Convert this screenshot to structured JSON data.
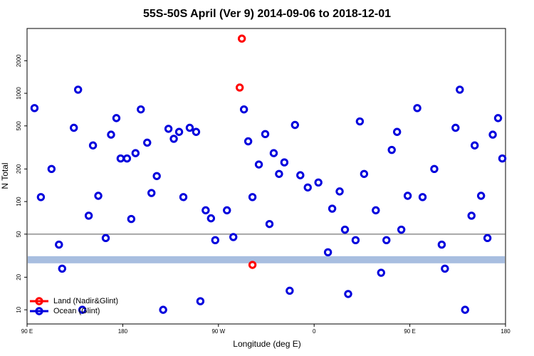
{
  "chart_data": {
    "type": "scatter",
    "title": "55S-50S April (Ver 9)   2014-09-06 to 2018-12-01",
    "x_label": "Longitude (deg E)",
    "y_label": "N Total",
    "xlim": [
      90,
      540
    ],
    "xticks": [
      {
        "value": 90,
        "label": "90 E"
      },
      {
        "value": 180,
        "label": "180"
      },
      {
        "value": 270,
        "label": "90 W"
      },
      {
        "value": 360,
        "label": "0"
      },
      {
        "value": 450,
        "label": "90 E"
      },
      {
        "value": 540,
        "label": "180"
      }
    ],
    "ylim": [
      7.4,
      3970
    ],
    "yticks": [
      10,
      20,
      50,
      100,
      200,
      500,
      1000,
      2000
    ],
    "log_y": true,
    "hline": {
      "value": 50,
      "color": "#555555"
    },
    "band": {
      "value": 29,
      "color": "#a8bee0"
    },
    "legend": "bottom-left",
    "series": [
      {
        "name": "Land (Nadir&Glint)",
        "color": "#ff0000",
        "x": [
          292,
          290,
          302
        ],
        "values": [
          3200,
          1130,
          26
        ]
      },
      {
        "name": "Ocean (Glint)",
        "color": "#0000dd",
        "x": [
          97,
          103,
          113,
          120,
          123,
          134,
          138,
          142,
          148,
          152,
          157,
          164,
          169,
          174,
          178,
          184,
          188,
          192,
          197,
          203,
          207,
          212,
          218,
          223,
          228,
          233,
          237,
          243,
          249,
          253,
          258,
          263,
          267,
          278,
          284,
          294,
          298,
          302,
          308,
          314,
          318,
          322,
          327,
          332,
          337,
          342,
          347,
          354,
          364,
          373,
          377,
          384,
          389,
          392,
          399,
          403,
          407,
          418,
          423,
          428,
          433,
          438,
          442,
          448,
          457,
          462,
          473,
          480,
          483,
          493,
          497,
          502,
          508,
          511,
          517,
          523,
          528,
          533,
          537
        ],
        "values": [
          730,
          110,
          200,
          40,
          24,
          480,
          1080,
          10,
          74,
          330,
          113,
          46,
          415,
          590,
          250,
          250,
          69,
          280,
          710,
          350,
          120,
          172,
          10,
          470,
          380,
          440,
          110,
          480,
          440,
          12,
          83,
          70,
          44,
          83,
          47,
          710,
          360,
          110,
          220,
          420,
          62,
          280,
          180,
          230,
          15,
          510,
          175,
          135,
          150,
          34,
          86,
          124,
          55,
          14,
          44,
          550,
          180,
          83,
          22,
          44,
          300,
          440,
          55,
          113,
          730,
          110,
          200,
          40,
          24,
          480,
          1080,
          10,
          74,
          330,
          113,
          46,
          415,
          590,
          250
        ]
      }
    ]
  }
}
